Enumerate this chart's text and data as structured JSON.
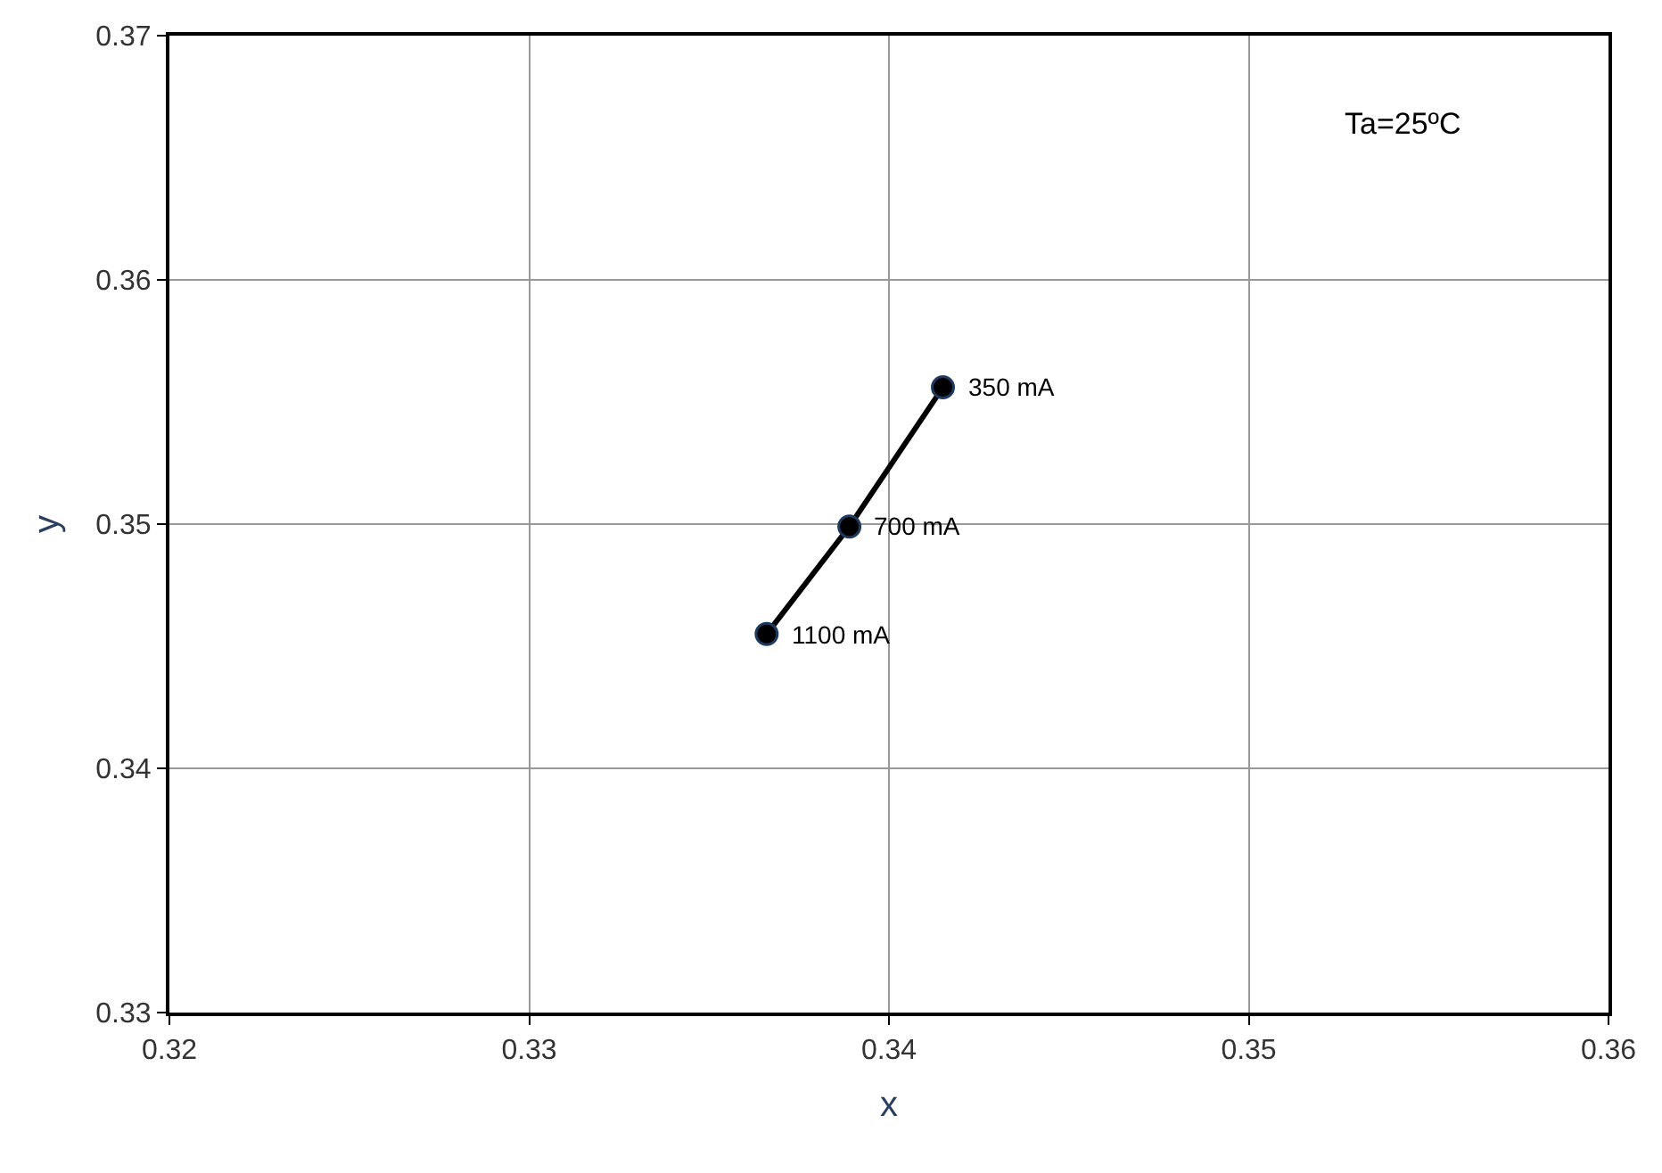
{
  "chart_data": {
    "type": "line",
    "xlabel": "x",
    "ylabel": "y",
    "x": [
      0.3415,
      0.3389,
      0.3366
    ],
    "series": [
      {
        "color": "#000000",
        "values": [
          0.3556,
          0.3499,
          0.3455
        ]
      }
    ],
    "xlim": [
      0.32,
      0.36
    ],
    "xticks": [
      0.32,
      0.33,
      0.34,
      0.35,
      0.36
    ],
    "ylim": [
      0.33,
      0.37
    ],
    "yticks": [
      0.33,
      0.34,
      0.35,
      0.36,
      0.37
    ],
    "grid": true,
    "marker": "circle",
    "line_style": "solid",
    "legend": false,
    "annotations": [
      "Ta=25ºC",
      {
        "text": "350 mA",
        "x": 0.3415,
        "y": 0.3556
      },
      {
        "text": "700 mA",
        "x": 0.3389,
        "y": 0.3499
      },
      {
        "text": "1100 mA",
        "x": 0.3366,
        "y": 0.3455
      }
    ]
  }
}
